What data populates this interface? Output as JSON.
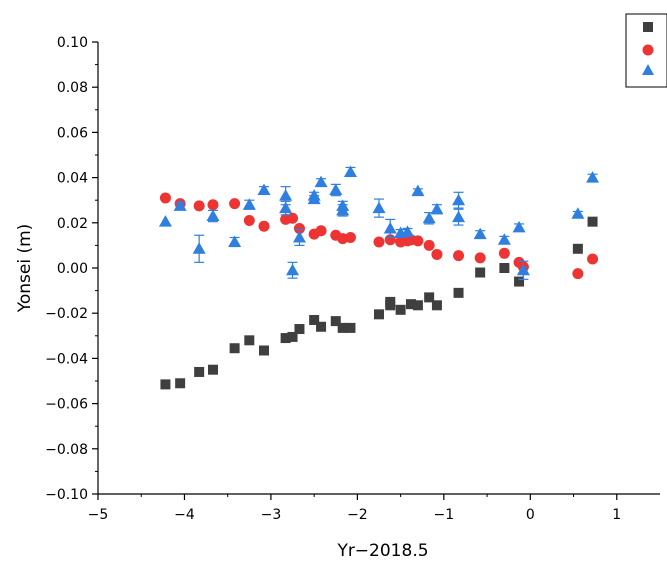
{
  "chart_data": {
    "type": "scatter",
    "title": "",
    "xlabel": "Yr−2018.5",
    "ylabel": "Yonsei (m)",
    "xlim": [
      -5,
      1.5
    ],
    "ylim": [
      -0.1,
      0.1
    ],
    "xticks": [
      "-5",
      "-4",
      "-3",
      "-2",
      "-1",
      "0",
      "1"
    ],
    "xtick_values": [
      -5,
      -4,
      -3,
      -2,
      -1,
      0,
      1
    ],
    "yticks": [
      "-0.10",
      "-0.08",
      "-0.06",
      "-0.04",
      "-0.02",
      "0.00",
      "0.02",
      "0.04",
      "0.06",
      "0.08",
      "0.10"
    ],
    "ytick_values": [
      -0.1,
      -0.08,
      -0.06,
      -0.04,
      -0.02,
      0.0,
      0.02,
      0.04,
      0.06,
      0.08,
      0.1
    ],
    "grid": false,
    "legend_position": "top-right",
    "series": [
      {
        "marker": "square",
        "color": "#3f3f3f",
        "points": [
          [
            -4.22,
            -0.0515
          ],
          [
            -4.05,
            -0.051
          ],
          [
            -3.83,
            -0.046
          ],
          [
            -3.67,
            -0.045
          ],
          [
            -3.42,
            -0.0355
          ],
          [
            -3.25,
            -0.032
          ],
          [
            -3.08,
            -0.0365
          ],
          [
            -2.83,
            -0.031
          ],
          [
            -2.75,
            -0.0305
          ],
          [
            -2.67,
            -0.027
          ],
          [
            -2.5,
            -0.023
          ],
          [
            -2.42,
            -0.026
          ],
          [
            -2.25,
            -0.0235
          ],
          [
            -2.17,
            -0.0265
          ],
          [
            -2.08,
            -0.0265
          ],
          [
            -1.75,
            -0.0205
          ],
          [
            -1.62,
            -0.0165
          ],
          [
            -1.62,
            -0.015
          ],
          [
            -1.5,
            -0.0185
          ],
          [
            -1.38,
            -0.016
          ],
          [
            -1.3,
            -0.0165
          ],
          [
            -1.17,
            -0.013
          ],
          [
            -1.08,
            -0.0165
          ],
          [
            -0.83,
            -0.011
          ],
          [
            -0.58,
            -0.002
          ],
          [
            -0.3,
            0.0
          ],
          [
            -0.13,
            -0.006
          ],
          [
            0.55,
            0.0085
          ],
          [
            0.72,
            0.0205
          ]
        ]
      },
      {
        "marker": "circle",
        "color": "#ee3333",
        "points": [
          [
            -4.22,
            0.031
          ],
          [
            -4.05,
            0.0285
          ],
          [
            -3.83,
            0.0275
          ],
          [
            -3.67,
            0.028
          ],
          [
            -3.42,
            0.0285
          ],
          [
            -3.25,
            0.021
          ],
          [
            -3.08,
            0.0185
          ],
          [
            -2.83,
            0.0215
          ],
          [
            -2.75,
            0.022
          ],
          [
            -2.67,
            0.0175
          ],
          [
            -2.5,
            0.015
          ],
          [
            -2.42,
            0.0165
          ],
          [
            -2.25,
            0.0145
          ],
          [
            -2.17,
            0.013
          ],
          [
            -2.08,
            0.0135
          ],
          [
            -1.75,
            0.0115
          ],
          [
            -1.62,
            0.0125
          ],
          [
            -1.5,
            0.0115
          ],
          [
            -1.42,
            0.012
          ],
          [
            -1.38,
            0.0125
          ],
          [
            -1.3,
            0.012
          ],
          [
            -1.17,
            0.01
          ],
          [
            -1.08,
            0.006
          ],
          [
            -0.83,
            0.0055
          ],
          [
            -0.58,
            0.0045
          ],
          [
            -0.3,
            0.0065
          ],
          [
            -0.13,
            0.0025
          ],
          [
            -0.08,
            0.0005
          ],
          [
            0.55,
            -0.0025
          ],
          [
            0.72,
            0.004
          ]
        ]
      },
      {
        "marker": "triangle",
        "color": "#2f7fe0",
        "points": [
          [
            -4.22,
            0.0205,
            0.0
          ],
          [
            -4.05,
            0.0275,
            0.0015
          ],
          [
            -3.83,
            0.0085,
            0.006
          ],
          [
            -3.67,
            0.023,
            0.0025
          ],
          [
            -3.42,
            0.0115,
            0.002
          ],
          [
            -3.25,
            0.028,
            0.002
          ],
          [
            -3.08,
            0.0345,
            0.0015
          ],
          [
            -2.83,
            0.0265,
            0.003
          ],
          [
            -2.83,
            0.032,
            0.004
          ],
          [
            -2.75,
            -0.001,
            0.0035
          ],
          [
            -2.67,
            0.0135,
            0.0035
          ],
          [
            -2.5,
            0.0305,
            0.0015
          ],
          [
            -2.5,
            0.032,
            0.0015
          ],
          [
            -2.42,
            0.038,
            0.0015
          ],
          [
            -2.25,
            0.0345,
            0.0025
          ],
          [
            -2.17,
            0.0255,
            0.0025
          ],
          [
            -2.17,
            0.0275,
            0.002
          ],
          [
            -2.08,
            0.0425,
            0.002
          ],
          [
            -1.75,
            0.0265,
            0.004
          ],
          [
            -1.62,
            0.0175,
            0.004
          ],
          [
            -1.5,
            0.0155,
            0.0015
          ],
          [
            -1.42,
            0.016,
            0.0015
          ],
          [
            -1.3,
            0.034,
            0.001
          ],
          [
            -1.17,
            0.022,
            0.0025
          ],
          [
            -1.08,
            0.026,
            0.002
          ],
          [
            -0.83,
            0.0225,
            0.0035
          ],
          [
            -0.83,
            0.03,
            0.0035
          ],
          [
            -0.58,
            0.015,
            0.0015
          ],
          [
            -0.3,
            0.0125,
            0.0015
          ],
          [
            -0.13,
            0.018,
            0.0015
          ],
          [
            -0.08,
            -0.001,
            0.004
          ],
          [
            0.55,
            0.024,
            0.001
          ],
          [
            0.72,
            0.04,
            0.0015
          ]
        ]
      }
    ]
  }
}
